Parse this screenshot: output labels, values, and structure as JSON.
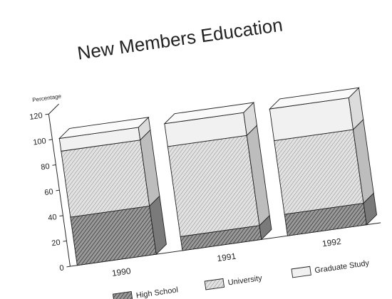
{
  "chart_data": {
    "type": "bar",
    "stacked": true,
    "three_d": true,
    "title": "New Members Education",
    "ylabel": "Percentage",
    "xlabel": "",
    "ylim": [
      0,
      120
    ],
    "yticks": [
      "0",
      "20",
      "40",
      "60",
      "80",
      "100",
      "120"
    ],
    "categories": [
      "1990",
      "1991",
      "1992"
    ],
    "series": [
      {
        "name": "High School",
        "values": [
          38,
          11,
          17
        ]
      },
      {
        "name": "University",
        "values": [
          52,
          71,
          58
        ]
      },
      {
        "name": "Graduate Study",
        "values": [
          10,
          18,
          25
        ]
      }
    ],
    "legend_position": "bottom",
    "colors": {
      "High School": "#8a8a8a",
      "University": "#c6c6c6",
      "Graduate Study": "#eaeaea",
      "frame": "#2a2a2a"
    }
  }
}
